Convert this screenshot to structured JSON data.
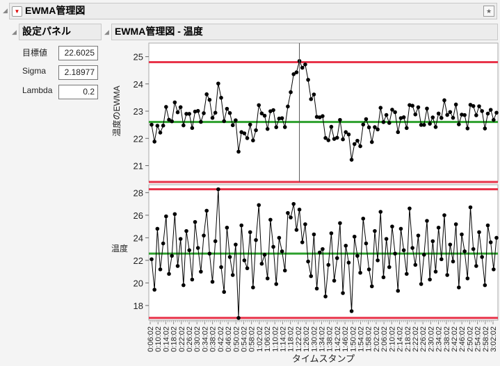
{
  "title": "EWMA管理図",
  "panel": {
    "title": "設定パネル",
    "fields": [
      {
        "label": "目標値",
        "value": "22.6025"
      },
      {
        "label": "Sigma",
        "value": "2.18977"
      },
      {
        "label": "Lambda",
        "value": "0.2"
      }
    ]
  },
  "chart_title": "EWMA管理図 - 温度",
  "colors": {
    "limit": "#e8344a",
    "center": "#2ca02c",
    "points": "#000000"
  },
  "chart_data": [
    {
      "type": "line",
      "ylabel": "温度のEWMA",
      "ylim": [
        20.4,
        25.5
      ],
      "yticks": [
        "25",
        "24",
        "23",
        "22",
        "21"
      ],
      "center": 22.6025,
      "ucl": 24.8,
      "lcl": 20.4,
      "lambda": 0.2
    },
    {
      "type": "line",
      "ylabel": "温度",
      "ylim": [
        16.7,
        28.7
      ],
      "yticks": [
        "28",
        "26",
        "24",
        "22",
        "20",
        "18"
      ],
      "center": 22.6025,
      "ucl": 28.3,
      "lcl": 16.9,
      "xlabel": "タイムスタンプ",
      "xticks": [
        "0:06:02",
        "0:10:02",
        "0:14:02",
        "0:18:02",
        "0:22:02",
        "0:26:02",
        "0:30:02",
        "0:34:02",
        "0:38:02",
        "0:42:02",
        "0:46:02",
        "0:50:02",
        "0:54:02",
        "0:58:02",
        "1:02:02",
        "1:06:02",
        "1:10:02",
        "1:14:02",
        "1:18:02",
        "1:22:02",
        "1:26:02",
        "1:30:02",
        "1:34:02",
        "1:38:02",
        "1:42:02",
        "1:46:02",
        "1:50:02",
        "1:54:02",
        "1:58:02",
        "2:02:02",
        "2:06:02",
        "2:10:02",
        "2:14:02",
        "2:18:02",
        "2:22:02",
        "2:26:02",
        "2:30:02",
        "2:34:02",
        "2:38:02",
        "2:42:02",
        "2:46:02",
        "2:50:02",
        "2:54:02",
        "2:58:02",
        "3:02:02"
      ],
      "values": [
        22.1,
        19.4,
        24.8,
        21.2,
        23.5,
        25.9,
        20.8,
        22.4,
        26.1,
        21.5,
        23.9,
        19.8,
        24.6,
        22.9,
        20.3,
        25.4,
        23.1,
        21.0,
        24.2,
        26.4,
        22.6,
        20.1,
        23.7,
        28.3,
        21.4,
        19.2,
        24.9,
        22.3,
        20.7,
        23.4,
        16.9,
        25.1,
        22.0,
        21.3,
        24.5,
        19.6,
        23.8,
        26.9,
        21.7,
        22.5,
        20.4,
        25.6,
        23.2,
        19.9,
        24.0,
        22.8,
        21.1,
        26.2,
        25.8,
        27.0,
        24.7,
        26.5,
        23.6,
        25.2,
        21.9,
        20.6,
        24.3,
        19.5,
        22.7,
        23.0,
        18.8,
        21.6,
        24.4,
        20.2,
        22.2,
        25.3,
        19.1,
        23.3,
        21.8,
        17.5,
        24.1,
        22.4,
        20.9,
        25.7,
        23.5,
        21.2,
        19.7,
        24.6,
        22.0,
        26.3,
        20.5,
        23.9,
        21.4,
        25.0,
        22.6,
        19.3,
        24.8,
        22.9,
        20.8,
        26.6,
        23.1,
        21.6,
        24.2,
        19.9,
        22.5,
        25.5,
        20.3,
        23.7,
        21.0,
        24.9,
        22.1,
        26.0,
        20.7,
        23.4,
        21.9,
        25.2,
        19.6,
        24.3,
        22.8,
        20.4,
        26.7,
        23.0,
        21.5,
        24.5,
        22.3,
        19.8,
        25.1,
        23.6,
        21.2,
        24.0
      ]
    }
  ]
}
